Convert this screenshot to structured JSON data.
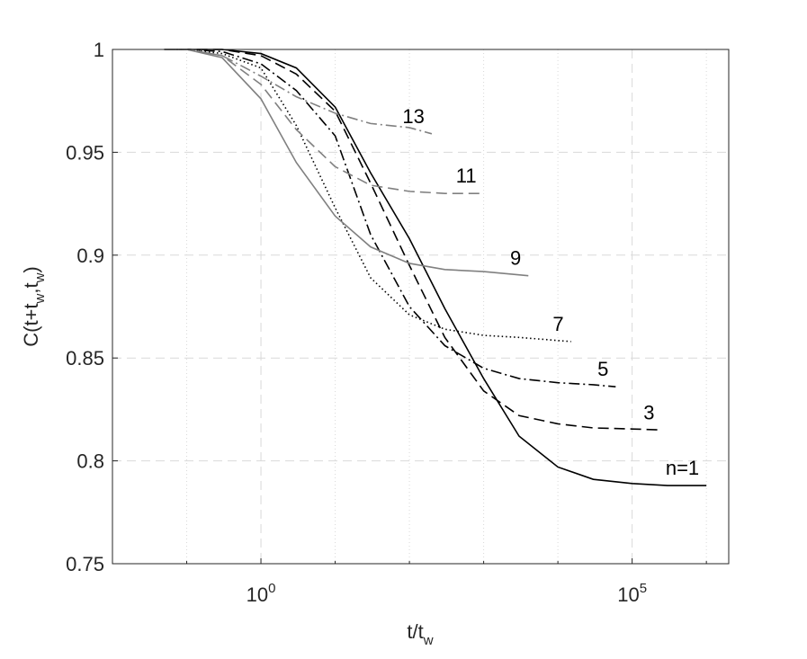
{
  "chart_data": {
    "type": "line",
    "xlabel": "t/t_w",
    "ylabel": "C(t+t_w,t_w)",
    "x_scale": "log",
    "xlim": [
      0.01,
      2000000
    ],
    "ylim": [
      0.75,
      1
    ],
    "xticks": [
      {
        "value": 1,
        "label": "10^0"
      },
      {
        "value": 100000,
        "label": "10^5"
      }
    ],
    "xminorticks": [
      0.01,
      0.1,
      10,
      100,
      1000,
      10000,
      1000000
    ],
    "yticks": [
      0.75,
      0.8,
      0.85,
      0.9,
      0.95,
      1
    ],
    "grid": true,
    "series": [
      {
        "name": "n=1",
        "color": "#000000",
        "dash": "solid",
        "x": [
          0.05,
          0.1,
          0.3,
          1,
          3,
          10,
          30,
          100,
          300,
          1000,
          3000,
          10000,
          30000,
          100000,
          300000,
          1000000
        ],
        "values": [
          1,
          1,
          1,
          0.998,
          0.991,
          0.972,
          0.94,
          0.908,
          0.874,
          0.84,
          0.812,
          0.797,
          0.791,
          0.789,
          0.788,
          0.788
        ]
      },
      {
        "name": "3",
        "color": "#000000",
        "dash": "dashed",
        "x": [
          0.05,
          0.1,
          0.3,
          1,
          3,
          10,
          30,
          100,
          300,
          1000,
          3000,
          10000,
          30000,
          100000,
          250000
        ],
        "values": [
          1,
          1,
          1,
          0.997,
          0.988,
          0.97,
          0.935,
          0.895,
          0.86,
          0.834,
          0.822,
          0.818,
          0.816,
          0.8155,
          0.815
        ]
      },
      {
        "name": "5",
        "color": "#000000",
        "dash": "dashdot",
        "x": [
          0.05,
          0.1,
          0.3,
          1,
          3,
          10,
          30,
          100,
          300,
          1000,
          3000,
          10000,
          30000,
          60000
        ],
        "values": [
          1,
          1,
          0.999,
          0.993,
          0.98,
          0.958,
          0.91,
          0.875,
          0.856,
          0.845,
          0.84,
          0.838,
          0.837,
          0.836
        ]
      },
      {
        "name": "7",
        "color": "#000000",
        "dash": "dotted",
        "x": [
          0.05,
          0.1,
          0.3,
          1,
          3,
          10,
          30,
          100,
          300,
          1000,
          3000,
          15000
        ],
        "values": [
          1,
          1,
          0.998,
          0.991,
          0.963,
          0.923,
          0.889,
          0.871,
          0.864,
          0.861,
          0.86,
          0.858
        ]
      },
      {
        "name": "9",
        "color": "#808080",
        "dash": "solid",
        "x": [
          0.05,
          0.1,
          0.3,
          1,
          3,
          10,
          30,
          100,
          300,
          1000,
          4000
        ],
        "values": [
          1,
          1,
          0.996,
          0.976,
          0.945,
          0.919,
          0.904,
          0.896,
          0.893,
          0.892,
          0.89
        ]
      },
      {
        "name": "11",
        "color": "#808080",
        "dash": "dashed",
        "x": [
          0.05,
          0.1,
          0.3,
          1,
          3,
          10,
          30,
          100,
          300,
          1000
        ],
        "values": [
          1,
          1,
          0.997,
          0.983,
          0.961,
          0.943,
          0.934,
          0.931,
          0.93,
          0.93
        ]
      },
      {
        "name": "13",
        "color": "#808080",
        "dash": "dashdot",
        "x": [
          0.05,
          0.1,
          0.3,
          1,
          3,
          10,
          30,
          100,
          200
        ],
        "values": [
          1,
          1,
          0.997,
          0.987,
          0.977,
          0.969,
          0.964,
          0.962,
          0.959
        ]
      }
    ]
  }
}
